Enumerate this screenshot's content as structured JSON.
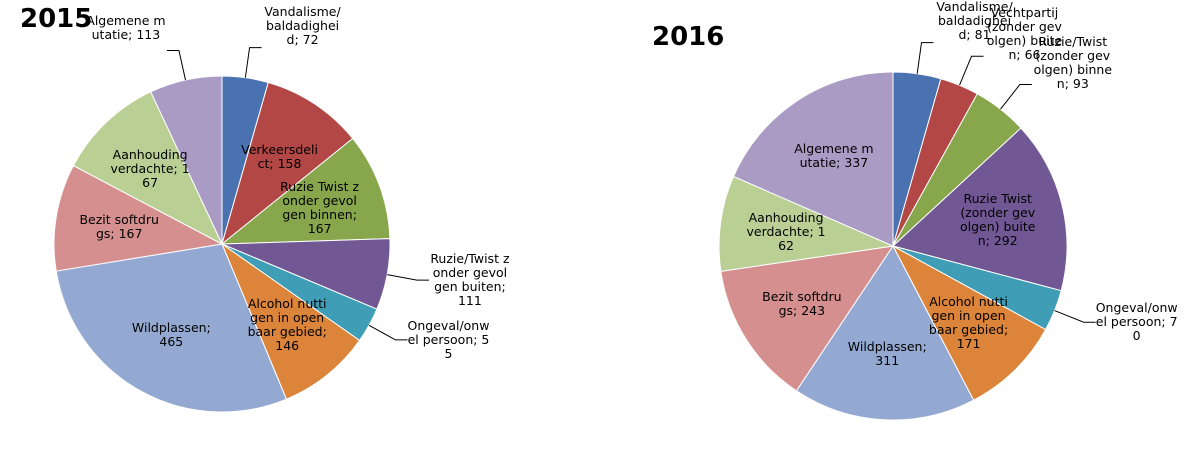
{
  "chart_data": [
    {
      "type": "pie",
      "title": "2015",
      "values": [
        72,
        158,
        167,
        111,
        55,
        146,
        465,
        167,
        167,
        113
      ],
      "value_labels": [
        "Vandalisme/baldadigheid; 72",
        "Verkeersdelict; 158",
        "Ruzie Twist zonder gevolgen binnen; 167",
        "Ruzie/Twist zonder gevolgen buiten; 111",
        "Ongeval/onwel persoon; 55",
        "Alcohol nuttigen in openbaar gebied; 146",
        "Wildplassen; 465",
        "Bezit softdrugs; 167",
        "Aanhouding verdachte; 167",
        "Algemene mutatie; 113"
      ],
      "colors": [
        "#4a72b0",
        "#b24745",
        "#88a64b",
        "#715895",
        "#3f9db5",
        "#dc8439",
        "#93a9d2",
        "#d48f8e",
        "#b9cf93",
        "#a99bc4"
      ]
    },
    {
      "type": "pie",
      "title": "2016",
      "values": [
        81,
        66,
        93,
        292,
        70,
        171,
        311,
        243,
        162,
        337
      ],
      "value_labels": [
        "Vandalisme/baldadigheid; 81",
        "Vechtpartij (zonder gevolgen) buiten; 66",
        "Ruzie/Twist (zonder gevolgen) binnen; 93",
        "Ruzie Twist (zonder gevolgen) buiten; 292",
        "Ongeval/onwel persoon; 70",
        "Alcohol nuttigen in openbaar gebied; 171",
        "Wildplassen; 311",
        "Bezit softdrugs; 243",
        "Aanhouding verdachte; 162",
        "Algemene mutatie; 337"
      ],
      "colors": [
        "#4a72b0",
        "#b24745",
        "#88a64b",
        "#715895",
        "#3f9db5",
        "#dc8439",
        "#93a9d2",
        "#d48f8e",
        "#b9cf93",
        "#a99bc4"
      ]
    }
  ]
}
